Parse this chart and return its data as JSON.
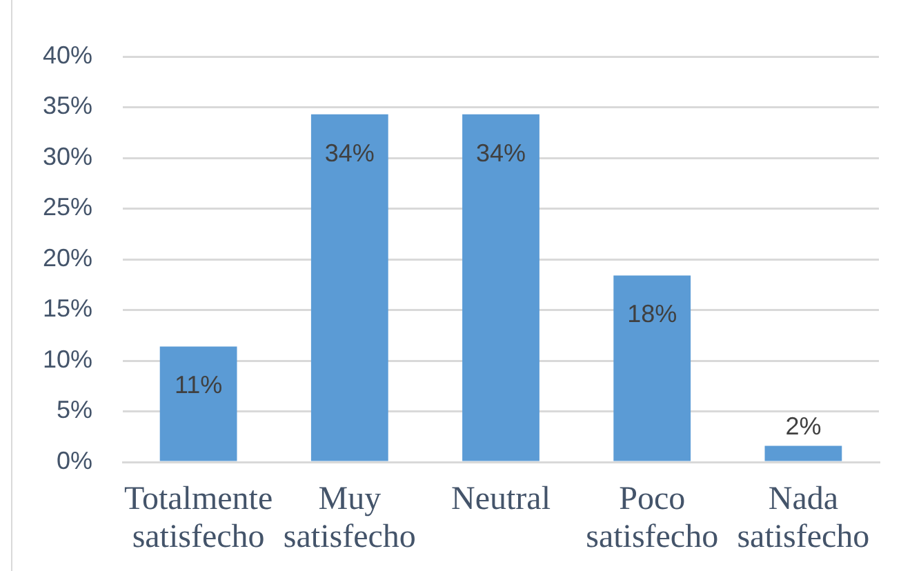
{
  "chart_data": {
    "type": "bar",
    "categories": [
      "Totalmente satisfecho",
      "Muy satisfecho",
      "Neutral",
      "Poco satisfecho",
      "Nada satisfecho"
    ],
    "values": [
      11.4,
      34.3,
      34.3,
      18.4,
      1.6
    ],
    "value_labels": [
      "11%",
      "34%",
      "34%",
      "18%",
      "2%"
    ],
    "color": "#5b9bd5",
    "ylim": [
      0,
      40
    ],
    "yticks": [
      {
        "value": 0,
        "label": "0%"
      },
      {
        "value": 5,
        "label": "5%"
      },
      {
        "value": 10,
        "label": "10%"
      },
      {
        "value": 15,
        "label": "15%"
      },
      {
        "value": 20,
        "label": "20%"
      },
      {
        "value": 25,
        "label": "25%"
      },
      {
        "value": 30,
        "label": "30%"
      },
      {
        "value": 35,
        "label": "35%"
      },
      {
        "value": 40,
        "label": "40%"
      }
    ],
    "grid": "y"
  }
}
